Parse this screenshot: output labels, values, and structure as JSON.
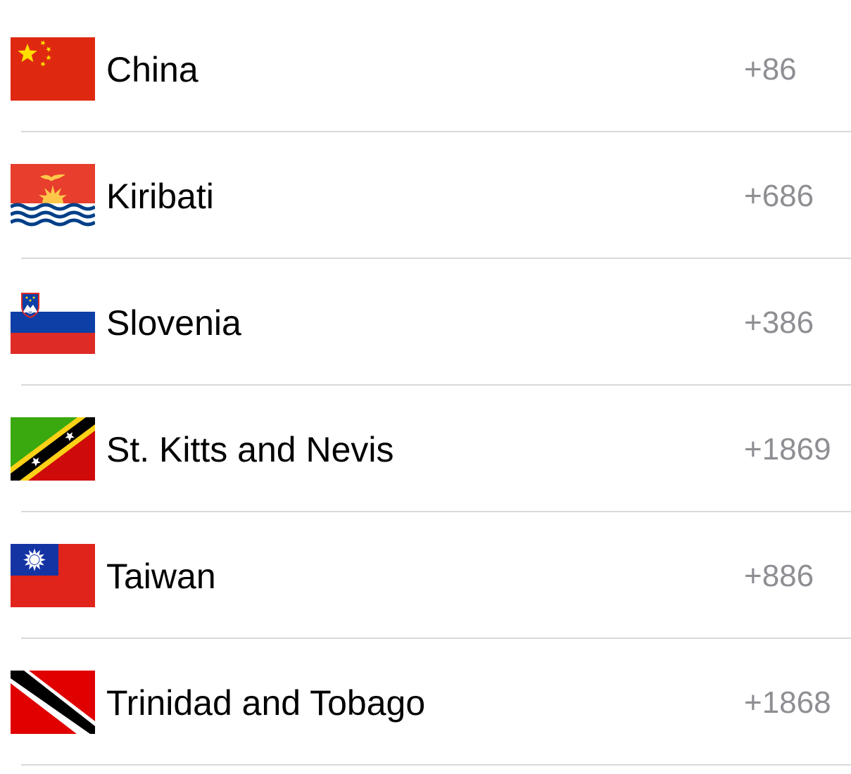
{
  "countries": [
    {
      "name": "China",
      "code": "+86",
      "flag_icon": "china-flag-icon"
    },
    {
      "name": "Kiribati",
      "code": "+686",
      "flag_icon": "kiribati-flag-icon"
    },
    {
      "name": "Slovenia",
      "code": "+386",
      "flag_icon": "slovenia-flag-icon"
    },
    {
      "name": "St. Kitts and Nevis",
      "code": "+1869",
      "flag_icon": "st-kitts-and-nevis-flag-icon"
    },
    {
      "name": "Taiwan",
      "code": "+886",
      "flag_icon": "taiwan-flag-icon"
    },
    {
      "name": "Trinidad and Tobago",
      "code": "+1868",
      "flag_icon": "trinidad-and-tobago-flag-icon"
    }
  ],
  "colors": {
    "name_text": "#000000",
    "code_text": "#8e8e93",
    "separator": "#d9d9dd",
    "background": "#ffffff"
  }
}
